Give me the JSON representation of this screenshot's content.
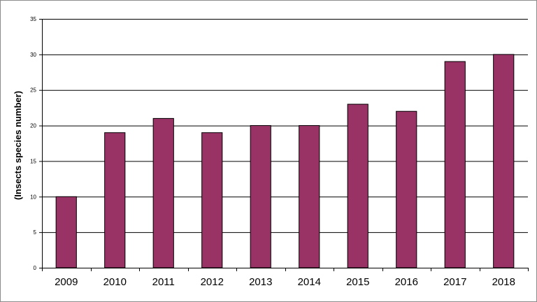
{
  "chart_data": {
    "type": "bar",
    "title": "",
    "xlabel": "",
    "ylabel": "(Insects species number)",
    "categories": [
      "2009",
      "2010",
      "2011",
      "2012",
      "2013",
      "2014",
      "2015",
      "2016",
      "2017",
      "2018"
    ],
    "values": [
      10,
      19,
      21,
      19,
      20,
      20,
      23,
      22,
      29,
      30
    ],
    "ylim": [
      0,
      35
    ],
    "yticks": [
      "0",
      "5",
      "10",
      "15",
      "20",
      "25",
      "30",
      "35"
    ],
    "grid": true,
    "legend": "none",
    "colors": {
      "bar_fill": "#993366",
      "bar_stroke": "#000000",
      "grid": "#000000",
      "axis": "#000000",
      "frame": "#8c8c8c"
    }
  }
}
